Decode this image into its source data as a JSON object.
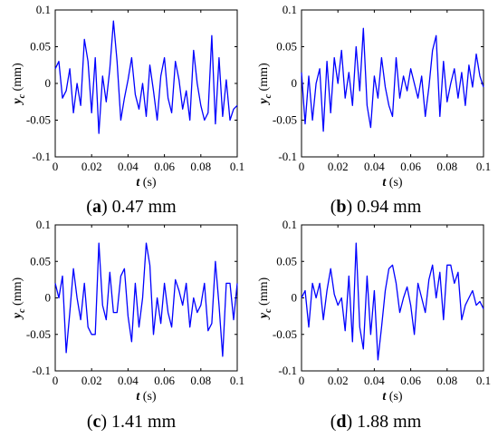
{
  "chart_data": [
    {
      "type": "line",
      "caption_letter": "a",
      "caption_text": "0.47 mm",
      "xlabel_var": "t",
      "xlabel_unit": "(s)",
      "ylabel_var": "y",
      "ylabel_sub": "c",
      "ylabel_unit": "(mm)",
      "xlim": [
        0,
        0.1
      ],
      "ylim": [
        -0.1,
        0.1
      ],
      "xticks": [
        "0",
        "0.02",
        "0.04",
        "0.06",
        "0.08",
        "0.1"
      ],
      "yticks": [
        "-0.1",
        "-0.05",
        "0",
        "0.05",
        "0.1"
      ],
      "x": [
        0,
        0.002,
        0.004,
        0.006,
        0.008,
        0.01,
        0.012,
        0.014,
        0.016,
        0.018,
        0.02,
        0.022,
        0.024,
        0.026,
        0.028,
        0.03,
        0.032,
        0.034,
        0.036,
        0.038,
        0.04,
        0.042,
        0.044,
        0.046,
        0.048,
        0.05,
        0.052,
        0.054,
        0.056,
        0.058,
        0.06,
        0.062,
        0.064,
        0.066,
        0.068,
        0.07,
        0.072,
        0.074,
        0.076,
        0.078,
        0.08,
        0.082,
        0.084,
        0.086,
        0.088,
        0.09,
        0.092,
        0.094,
        0.096,
        0.098,
        0.1
      ],
      "values": [
        0.02,
        0.03,
        -0.02,
        -0.01,
        0.02,
        -0.04,
        0.0,
        -0.03,
        0.06,
        0.03,
        -0.04,
        0.035,
        -0.068,
        0.01,
        -0.025,
        0.02,
        0.085,
        0.03,
        -0.05,
        -0.02,
        0.005,
        0.035,
        -0.015,
        -0.035,
        0.0,
        -0.045,
        0.025,
        -0.01,
        -0.05,
        0.01,
        0.035,
        -0.02,
        -0.04,
        0.03,
        0.005,
        -0.035,
        -0.01,
        -0.05,
        0.045,
        0.0,
        -0.03,
        -0.05,
        -0.04,
        0.065,
        -0.055,
        0.035,
        -0.045,
        0.005,
        -0.05,
        -0.035,
        -0.03
      ]
    },
    {
      "type": "line",
      "caption_letter": "b",
      "caption_text": "0.94 mm",
      "xlabel_var": "t",
      "xlabel_unit": "(s)",
      "ylabel_var": "y",
      "ylabel_sub": "c",
      "ylabel_unit": "(mm)",
      "xlim": [
        0,
        0.1
      ],
      "ylim": [
        -0.1,
        0.1
      ],
      "xticks": [
        "0",
        "0.02",
        "0.04",
        "0.06",
        "0.08",
        "0.1"
      ],
      "yticks": [
        "-0.1",
        "-0.05",
        "0",
        "0.05",
        "0.1"
      ],
      "x": [
        0,
        0.002,
        0.004,
        0.006,
        0.008,
        0.01,
        0.012,
        0.014,
        0.016,
        0.018,
        0.02,
        0.022,
        0.024,
        0.026,
        0.028,
        0.03,
        0.032,
        0.034,
        0.036,
        0.038,
        0.04,
        0.042,
        0.044,
        0.046,
        0.048,
        0.05,
        0.052,
        0.054,
        0.056,
        0.058,
        0.06,
        0.062,
        0.064,
        0.066,
        0.068,
        0.07,
        0.072,
        0.074,
        0.076,
        0.078,
        0.08,
        0.082,
        0.084,
        0.086,
        0.088,
        0.09,
        0.092,
        0.094,
        0.096,
        0.098,
        0.1
      ],
      "values": [
        0.015,
        -0.055,
        0.01,
        -0.05,
        0.0,
        0.02,
        -0.065,
        0.03,
        -0.04,
        0.035,
        0.0,
        0.045,
        -0.02,
        0.015,
        -0.03,
        0.05,
        -0.01,
        0.075,
        -0.03,
        -0.06,
        0.01,
        -0.02,
        0.035,
        -0.005,
        -0.03,
        -0.045,
        0.035,
        -0.02,
        0.01,
        -0.01,
        0.02,
        0.0,
        -0.02,
        0.01,
        -0.045,
        -0.005,
        0.045,
        0.065,
        -0.045,
        0.03,
        -0.025,
        0.0,
        0.02,
        -0.02,
        0.015,
        -0.03,
        0.025,
        -0.005,
        0.04,
        0.01,
        -0.005
      ]
    },
    {
      "type": "line",
      "caption_letter": "c",
      "caption_text": "1.41 mm",
      "xlabel_var": "t",
      "xlabel_unit": "(s)",
      "ylabel_var": "y",
      "ylabel_sub": "c",
      "ylabel_unit": "(mm)",
      "xlim": [
        0,
        0.1
      ],
      "ylim": [
        -0.1,
        0.1
      ],
      "xticks": [
        "0",
        "0.02",
        "0.04",
        "0.06",
        "0.08",
        "0.1"
      ],
      "yticks": [
        "-0.1",
        "-0.05",
        "0",
        "0.05",
        "0.1"
      ],
      "x": [
        0,
        0.002,
        0.004,
        0.006,
        0.008,
        0.01,
        0.012,
        0.014,
        0.016,
        0.018,
        0.02,
        0.022,
        0.024,
        0.026,
        0.028,
        0.03,
        0.032,
        0.034,
        0.036,
        0.038,
        0.04,
        0.042,
        0.044,
        0.046,
        0.048,
        0.05,
        0.052,
        0.054,
        0.056,
        0.058,
        0.06,
        0.062,
        0.064,
        0.066,
        0.068,
        0.07,
        0.072,
        0.074,
        0.076,
        0.078,
        0.08,
        0.082,
        0.084,
        0.086,
        0.088,
        0.09,
        0.092,
        0.094,
        0.096,
        0.098,
        0.1
      ],
      "values": [
        0.02,
        0.0,
        0.03,
        -0.075,
        -0.02,
        0.04,
        0.0,
        -0.03,
        0.02,
        -0.04,
        -0.05,
        -0.05,
        0.075,
        -0.01,
        -0.03,
        0.035,
        -0.02,
        -0.02,
        0.03,
        0.04,
        -0.025,
        -0.06,
        0.02,
        -0.04,
        0.0,
        0.075,
        0.045,
        -0.05,
        0.0,
        -0.035,
        0.02,
        -0.02,
        -0.04,
        0.025,
        0.01,
        -0.01,
        0.02,
        -0.04,
        0.0,
        -0.02,
        -0.01,
        0.02,
        -0.045,
        -0.035,
        0.05,
        -0.01,
        -0.08,
        0.02,
        0.02,
        -0.03,
        0.02
      ]
    },
    {
      "type": "line",
      "caption_letter": "d",
      "caption_text": "1.88 mm",
      "xlabel_var": "t",
      "xlabel_unit": "(s)",
      "ylabel_var": "y",
      "ylabel_sub": "c",
      "ylabel_unit": "(mm)",
      "xlim": [
        0,
        0.1
      ],
      "ylim": [
        -0.1,
        0.1
      ],
      "xticks": [
        "0",
        "0.02",
        "0.04",
        "0.06",
        "0.08",
        "0.1"
      ],
      "yticks": [
        "-0.1",
        "-0.05",
        "0",
        "0.05",
        "0.1"
      ],
      "x": [
        0,
        0.002,
        0.004,
        0.006,
        0.008,
        0.01,
        0.012,
        0.014,
        0.016,
        0.018,
        0.02,
        0.022,
        0.024,
        0.026,
        0.028,
        0.03,
        0.032,
        0.034,
        0.036,
        0.038,
        0.04,
        0.042,
        0.044,
        0.046,
        0.048,
        0.05,
        0.052,
        0.054,
        0.056,
        0.058,
        0.06,
        0.062,
        0.064,
        0.066,
        0.068,
        0.07,
        0.072,
        0.074,
        0.076,
        0.078,
        0.08,
        0.082,
        0.084,
        0.086,
        0.088,
        0.09,
        0.092,
        0.094,
        0.096,
        0.098,
        0.1
      ],
      "values": [
        0.0,
        0.01,
        -0.04,
        0.02,
        0.0,
        0.02,
        -0.03,
        0.01,
        0.04,
        0.005,
        -0.01,
        0.0,
        -0.045,
        0.03,
        -0.06,
        0.075,
        -0.04,
        -0.07,
        0.03,
        -0.05,
        0.01,
        -0.085,
        -0.04,
        0.01,
        0.04,
        0.045,
        0.02,
        -0.02,
        0.0,
        0.015,
        -0.01,
        -0.05,
        0.02,
        0.0,
        -0.02,
        0.025,
        0.045,
        0.0,
        0.035,
        -0.03,
        0.045,
        0.045,
        0.02,
        0.035,
        -0.03,
        -0.01,
        0.0,
        0.01,
        -0.01,
        -0.005,
        -0.015
      ]
    }
  ]
}
